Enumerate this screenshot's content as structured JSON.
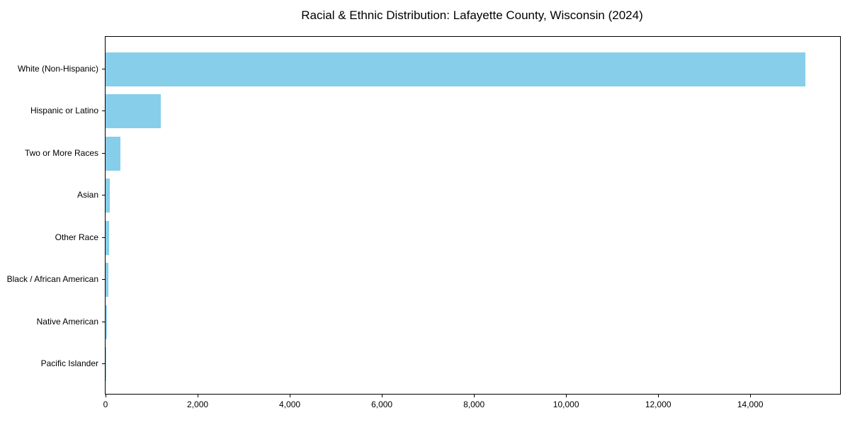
{
  "colors": {
    "bar": "#87CEEB",
    "spine": "#000000",
    "background": "#FFFFFF",
    "text": "#000000"
  },
  "chart_data": {
    "type": "bar",
    "orientation": "horizontal",
    "title": "Racial & Ethnic Distribution: Lafayette County, Wisconsin (2024)",
    "categories": [
      "White (Non-Hispanic)",
      "Hispanic or Latino",
      "Two or More Races",
      "Asian",
      "Other Race",
      "Black / African American",
      "Native American",
      "Pacific Islander"
    ],
    "values": [
      15200,
      1200,
      320,
      90,
      80,
      60,
      25,
      5
    ],
    "xlabel": "",
    "ylabel": "",
    "xlim": [
      0,
      15950
    ],
    "x_ticks": [
      0,
      2000,
      4000,
      6000,
      8000,
      10000,
      12000,
      14000
    ],
    "x_tick_labels": [
      "0",
      "2,000",
      "4,000",
      "6,000",
      "8,000",
      "10,000",
      "12,000",
      "14,000"
    ],
    "grid": false,
    "legend": null,
    "bar_color": "#87CEEB",
    "categories_order": "top-to-bottom"
  }
}
